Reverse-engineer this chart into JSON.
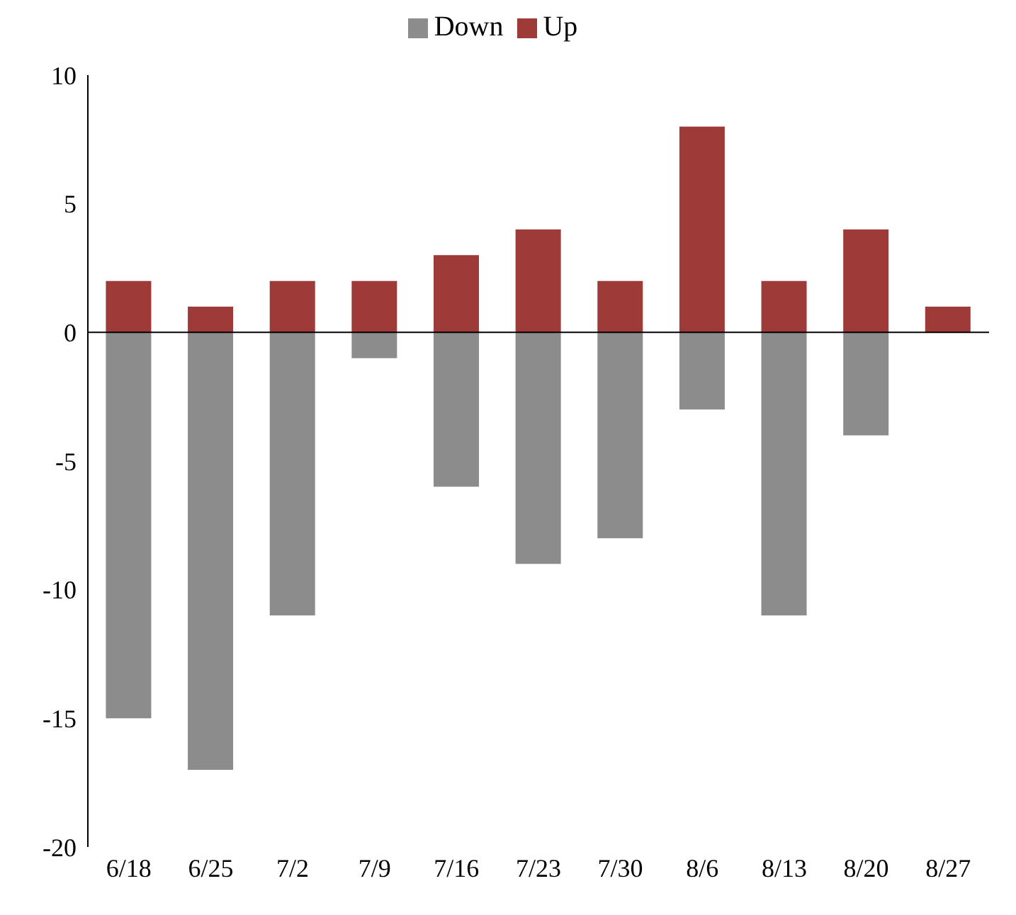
{
  "chart_data": {
    "type": "bar",
    "stacked": true,
    "categories": [
      "6/18",
      "6/25",
      "7/2",
      "7/9",
      "7/16",
      "7/23",
      "7/30",
      "8/6",
      "8/13",
      "8/20",
      "8/27"
    ],
    "series": [
      {
        "name": "Down",
        "color": "#8c8c8c",
        "values": [
          -15,
          -17,
          -11,
          -1,
          -6,
          -9,
          -8,
          -3,
          -11,
          -4,
          null
        ]
      },
      {
        "name": "Up",
        "color": "#9e3a38",
        "values": [
          2,
          1,
          2,
          2,
          3,
          4,
          2,
          8,
          2,
          4,
          1
        ]
      }
    ],
    "ylim": [
      -20,
      10
    ],
    "yticks": [
      -20,
      -15,
      -10,
      -5,
      0,
      5,
      10
    ],
    "legend": "top"
  }
}
